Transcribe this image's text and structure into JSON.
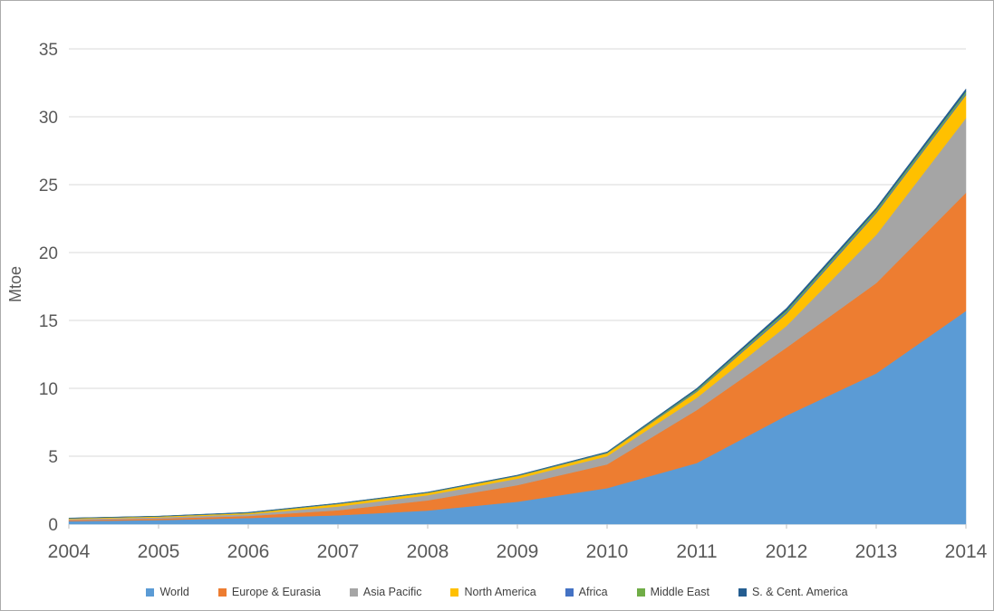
{
  "colors": {
    "background": "#FFFFFF",
    "frame_border": "#ABABAB",
    "gridline": "#D9D9D9",
    "axis_line": "#BFBFBF",
    "axis_text": "#595959",
    "legend_text": "#404040"
  },
  "chart_data": {
    "type": "area",
    "stacked": true,
    "title": "",
    "xlabel": "",
    "ylabel": "Mtoe",
    "x": [
      2004,
      2005,
      2006,
      2007,
      2008,
      2009,
      2010,
      2011,
      2012,
      2013,
      2014
    ],
    "ylim": [
      0,
      35
    ],
    "ytick_step": 5,
    "grid": true,
    "legend_position": "bottom",
    "series": [
      {
        "name": "World",
        "color": "#5B9BD5",
        "values": [
          0.22,
          0.3,
          0.45,
          0.65,
          1.0,
          1.65,
          2.65,
          4.5,
          8.0,
          11.1,
          15.7
        ]
      },
      {
        "name": "Europe & Eurasia",
        "color": "#ED7D31",
        "values": [
          0.07,
          0.1,
          0.15,
          0.37,
          0.75,
          1.22,
          1.75,
          3.9,
          5.0,
          6.65,
          8.7
        ]
      },
      {
        "name": "Asia Pacific",
        "color": "#A5A5A5",
        "values": [
          0.08,
          0.1,
          0.13,
          0.28,
          0.38,
          0.48,
          0.6,
          0.9,
          1.6,
          3.55,
          5.5
        ]
      },
      {
        "name": "North America",
        "color": "#FFC000",
        "values": [
          0.05,
          0.06,
          0.08,
          0.18,
          0.17,
          0.19,
          0.22,
          0.45,
          0.9,
          1.6,
          1.7
        ]
      },
      {
        "name": "Africa",
        "color": "#4472C4",
        "values": [
          0.01,
          0.01,
          0.02,
          0.02,
          0.02,
          0.02,
          0.03,
          0.06,
          0.1,
          0.1,
          0.1
        ]
      },
      {
        "name": "Middle East",
        "color": "#70AD47",
        "values": [
          0.01,
          0.01,
          0.02,
          0.02,
          0.02,
          0.02,
          0.03,
          0.09,
          0.13,
          0.14,
          0.15
        ]
      },
      {
        "name": "S. & Cent. America",
        "color": "#255E91",
        "values": [
          0.01,
          0.01,
          0.02,
          0.02,
          0.02,
          0.03,
          0.04,
          0.1,
          0.17,
          0.16,
          0.2
        ]
      }
    ]
  }
}
